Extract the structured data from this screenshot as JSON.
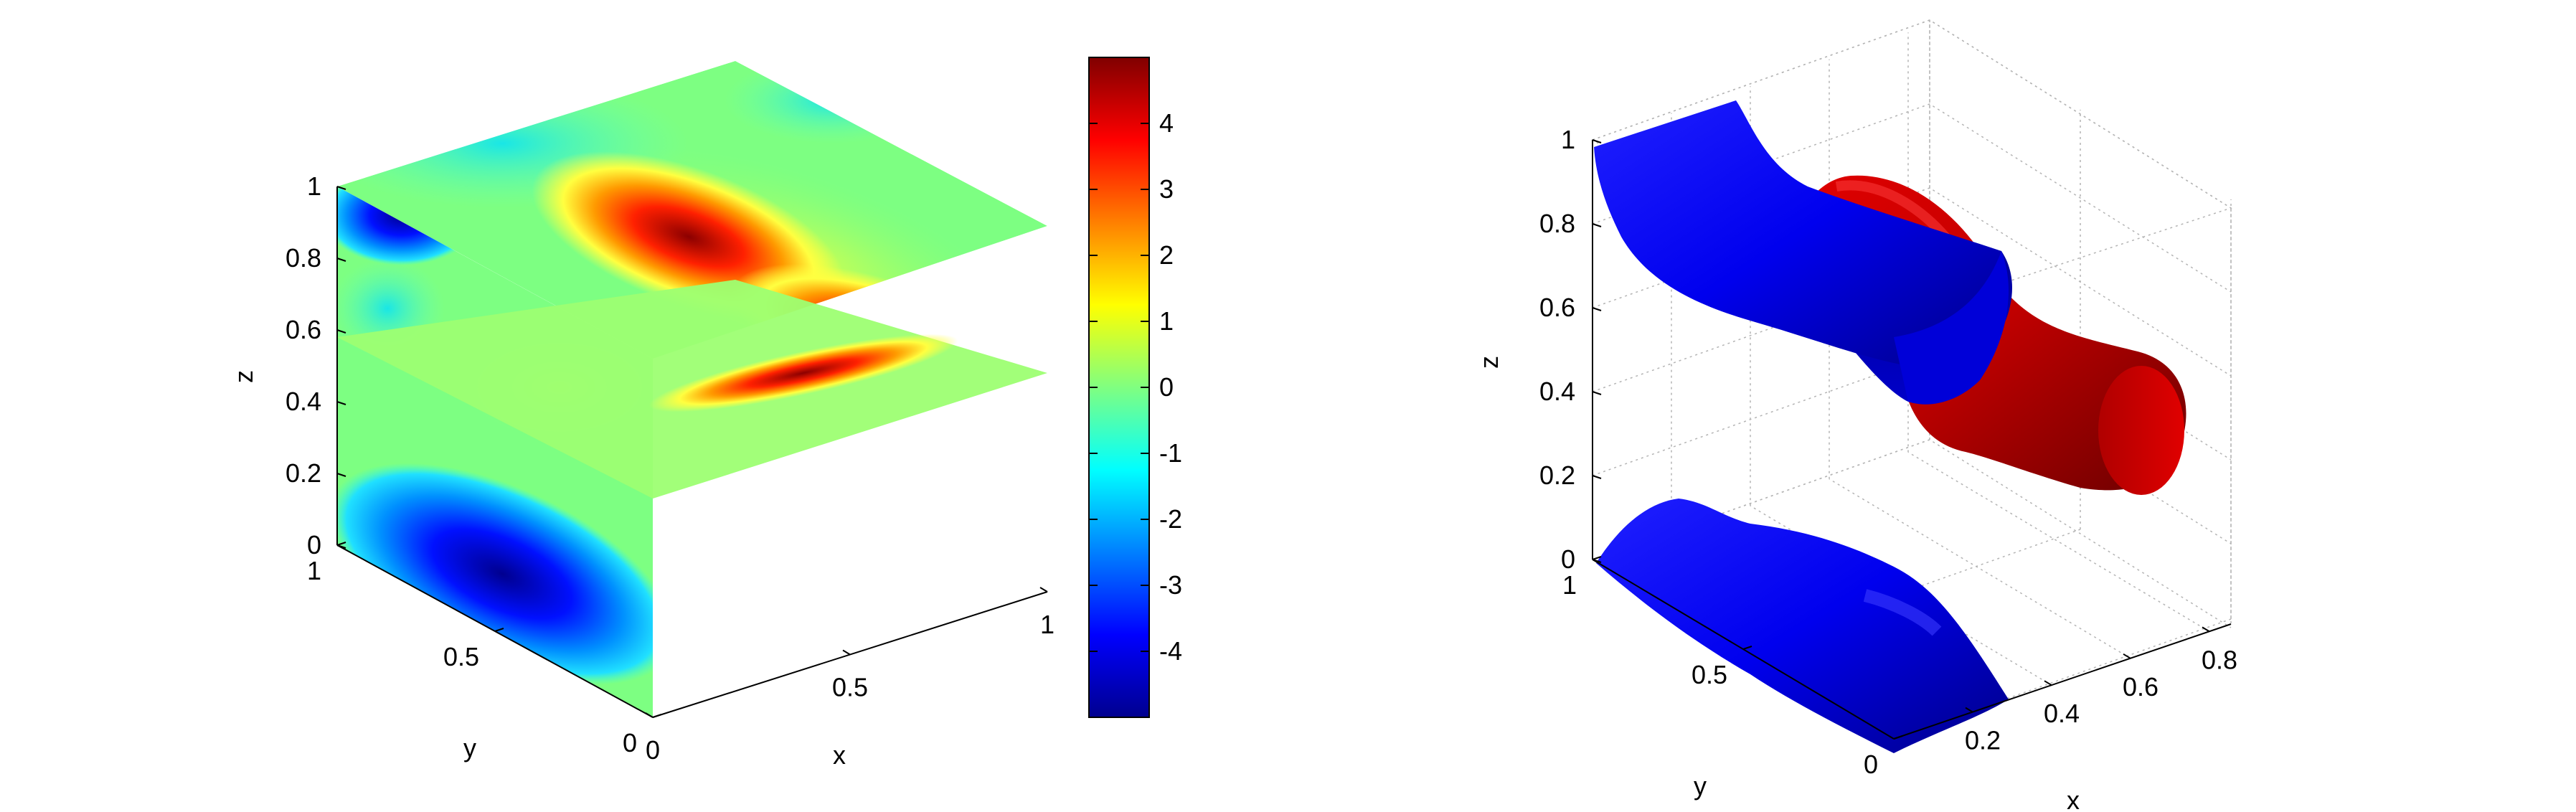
{
  "chart_data": [
    {
      "type": "heatmap",
      "subtype": "3d-slice-plot",
      "xlabel": "x",
      "ylabel": "y",
      "zlabel": "z",
      "xlim": [
        0,
        1
      ],
      "ylim": [
        0,
        1
      ],
      "zlim": [
        0,
        1
      ],
      "x_ticks": [
        0,
        0.5,
        1
      ],
      "y_ticks": [
        0,
        0.5,
        1
      ],
      "z_ticks": [
        0,
        0.2,
        0.4,
        0.6,
        0.8,
        1
      ],
      "colormap": "jet",
      "color_limits": [
        -5,
        5
      ],
      "colorbar_ticks": [
        -4,
        -3,
        -2,
        -1,
        0,
        1,
        2,
        3,
        4
      ],
      "slices": [
        {
          "plane": "x",
          "position": 0
        },
        {
          "plane": "y",
          "position": 1
        },
        {
          "plane": "z",
          "position": 0.5
        }
      ],
      "features": [
        {
          "slice": "y=1",
          "x_range": [
            0.3,
            0.85
          ],
          "z_range": [
            0.55,
            0.95
          ],
          "value": 4.5
        },
        {
          "slice": "x=0",
          "y_range": [
            0.1,
            0.9
          ],
          "z_range": [
            0.0,
            0.3
          ],
          "value": -4.5
        },
        {
          "slice": "x=0",
          "y_range": [
            0.75,
            0.95
          ],
          "z_range": [
            0.85,
            1.0
          ],
          "value": -4
        }
      ]
    },
    {
      "type": "scatter",
      "subtype": "3d-isosurface-plot",
      "xlabel": "x",
      "ylabel": "y",
      "zlabel": "z",
      "x_ticks": [
        0.2,
        0.4,
        0.6,
        0.8
      ],
      "y_ticks": [
        0,
        0.5,
        1
      ],
      "z_ticks": [
        0,
        0.2,
        0.4,
        0.6,
        0.8,
        1
      ],
      "grid": true,
      "surfaces": [
        {
          "color": "#0000ff",
          "x_range": [
            0,
            0.5
          ],
          "z_range": [
            0.45,
            1.0
          ]
        },
        {
          "color": "#0000ff",
          "x_range": [
            0,
            0.5
          ],
          "z_range": [
            0.0,
            0.2
          ]
        },
        {
          "color": "#cc0000",
          "x_range": [
            0.25,
            0.85
          ],
          "z_range": [
            0.15,
            0.9
          ]
        }
      ]
    }
  ]
}
